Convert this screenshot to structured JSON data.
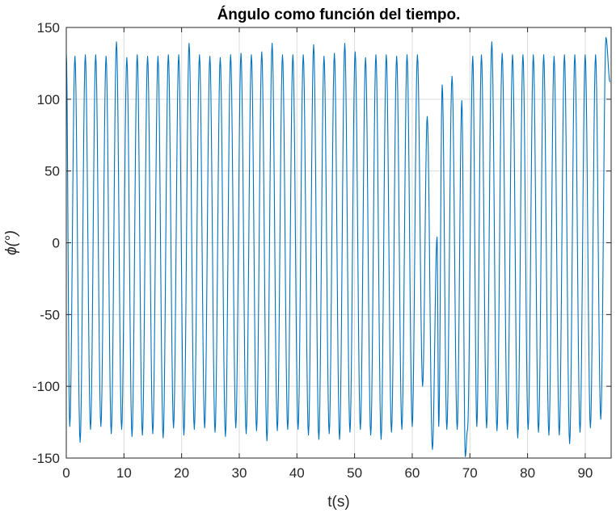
{
  "chart_data": {
    "type": "line",
    "title": "Ángulo como función del tiempo.",
    "xlabel": "t(s)",
    "ylabel": "ϕ(°)",
    "xlim": [
      0,
      94.5
    ],
    "ylim": [
      -150,
      150
    ],
    "xticks": [
      0,
      10,
      20,
      30,
      40,
      50,
      60,
      70,
      80,
      90
    ],
    "xtick_labels": [
      "0",
      "10",
      "20",
      "30",
      "40",
      "50",
      "60",
      "70",
      "80",
      "90"
    ],
    "yticks": [
      -150,
      -100,
      -50,
      0,
      50,
      100,
      150
    ],
    "ytick_labels": [
      "-150",
      "-100",
      "-50",
      "0",
      "50",
      "100",
      "150"
    ],
    "grid": true,
    "colors": {
      "series": "#0072BD",
      "axes": "#262626",
      "grid": "#dcdcdc"
    },
    "series": [
      {
        "x": [
          0.0,
          0.6,
          1.5,
          2.4,
          3.3,
          4.2,
          5.1,
          6.0,
          6.9,
          7.8,
          8.7,
          9.6,
          10.5,
          11.4,
          12.3,
          13.2,
          14.1,
          15.0,
          15.9,
          16.8,
          17.7,
          18.6,
          19.5,
          20.4,
          21.3,
          22.2,
          23.1,
          24.0,
          24.9,
          25.8,
          26.7,
          27.6,
          28.5,
          29.4,
          30.3,
          31.2,
          32.1,
          33.0,
          33.9,
          34.8,
          35.7,
          36.6,
          37.5,
          38.4,
          39.3,
          40.2,
          41.1,
          42.0,
          42.9,
          43.8,
          44.7,
          45.6,
          46.5,
          47.4,
          48.3,
          49.2,
          50.1,
          51.0,
          51.9,
          52.8,
          53.7,
          54.6,
          55.5,
          56.4,
          57.3,
          58.2,
          59.1,
          60.0,
          60.9,
          61.8,
          62.6,
          63.5,
          64.3,
          64.6,
          65.2,
          66.0,
          66.9,
          67.8,
          68.6,
          69.2,
          69.6,
          70.5,
          71.2,
          72.0,
          72.9,
          73.8,
          74.7,
          75.6,
          76.5,
          77.4,
          78.3,
          79.2,
          80.1,
          81.0,
          81.9,
          82.8,
          83.7,
          84.6,
          85.5,
          86.4,
          87.3,
          88.2,
          89.1,
          90.0,
          90.9,
          91.8,
          92.7,
          93.6,
          94.3
        ],
        "y": [
          132,
          -128,
          130,
          -139,
          131,
          -130,
          131,
          -128,
          130,
          -133,
          140,
          -130,
          129,
          -135,
          131,
          -134,
          130,
          -133,
          130,
          -136,
          131,
          -129,
          131,
          -134,
          139,
          -130,
          131,
          -129,
          130,
          -132,
          129,
          -135,
          131,
          -129,
          132,
          -133,
          131,
          -131,
          133,
          -138,
          139,
          -131,
          131,
          -130,
          131,
          -130,
          131,
          -134,
          138,
          -137,
          130,
          -133,
          132,
          -137,
          139,
          -132,
          133,
          -130,
          129,
          -134,
          131,
          -137,
          131,
          -132,
          130,
          -130,
          131,
          -128,
          131,
          -100,
          88,
          -144,
          4,
          -128,
          110,
          -130,
          116,
          -130,
          99,
          -149,
          -130,
          130,
          -128,
          131,
          -129,
          140,
          -131,
          132,
          -130,
          131,
          -136,
          131,
          -130,
          131,
          -132,
          131,
          -134,
          130,
          -134,
          131,
          -140,
          131,
          -132,
          131,
          -129,
          131,
          -123,
          143,
          112
        ]
      }
    ]
  }
}
